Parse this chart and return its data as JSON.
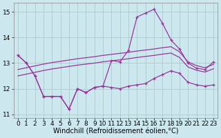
{
  "background_color": "#cce8ee",
  "grid_color": "#aacccc",
  "line_color": "#993399",
  "xlabel": "Windchill (Refroidissement éolien,°C)",
  "xlim": [
    -0.5,
    23.5
  ],
  "ylim": [
    10.85,
    15.35
  ],
  "xticks": [
    0,
    1,
    2,
    3,
    4,
    5,
    6,
    7,
    8,
    9,
    10,
    11,
    12,
    13,
    14,
    15,
    16,
    17,
    18,
    19,
    20,
    21,
    22,
    23
  ],
  "yticks": [
    11,
    12,
    13,
    14,
    15
  ],
  "tick_fontsize": 6.5,
  "label_fontsize": 7,
  "curve1": [
    13.3,
    13.0,
    12.5,
    11.7,
    11.7,
    11.7,
    11.2,
    12.0,
    11.85,
    12.05,
    12.1,
    13.1,
    13.05,
    13.5,
    14.8,
    14.95,
    15.1,
    14.55,
    13.9,
    13.55,
    13.0,
    12.8,
    12.75,
    13.05
  ],
  "curve2": [
    13.3,
    13.0,
    12.5,
    11.7,
    11.7,
    11.7,
    11.2,
    12.0,
    11.85,
    12.05,
    12.1,
    12.05,
    12.0,
    12.1,
    12.15,
    12.2,
    12.4,
    12.55,
    12.7,
    12.6,
    12.25,
    12.15,
    12.1,
    12.15
  ],
  "line_upper": [
    12.75,
    12.82,
    12.89,
    12.96,
    13.02,
    13.07,
    13.12,
    13.17,
    13.21,
    13.25,
    13.3,
    13.34,
    13.38,
    13.42,
    13.47,
    13.51,
    13.55,
    13.6,
    13.64,
    13.44,
    13.05,
    12.9,
    12.82,
    12.95
  ],
  "line_lower": [
    12.5,
    12.57,
    12.64,
    12.71,
    12.77,
    12.82,
    12.87,
    12.92,
    12.96,
    13.0,
    13.05,
    13.09,
    13.13,
    13.17,
    13.22,
    13.26,
    13.3,
    13.35,
    13.39,
    13.22,
    12.85,
    12.72,
    12.65,
    12.78
  ]
}
